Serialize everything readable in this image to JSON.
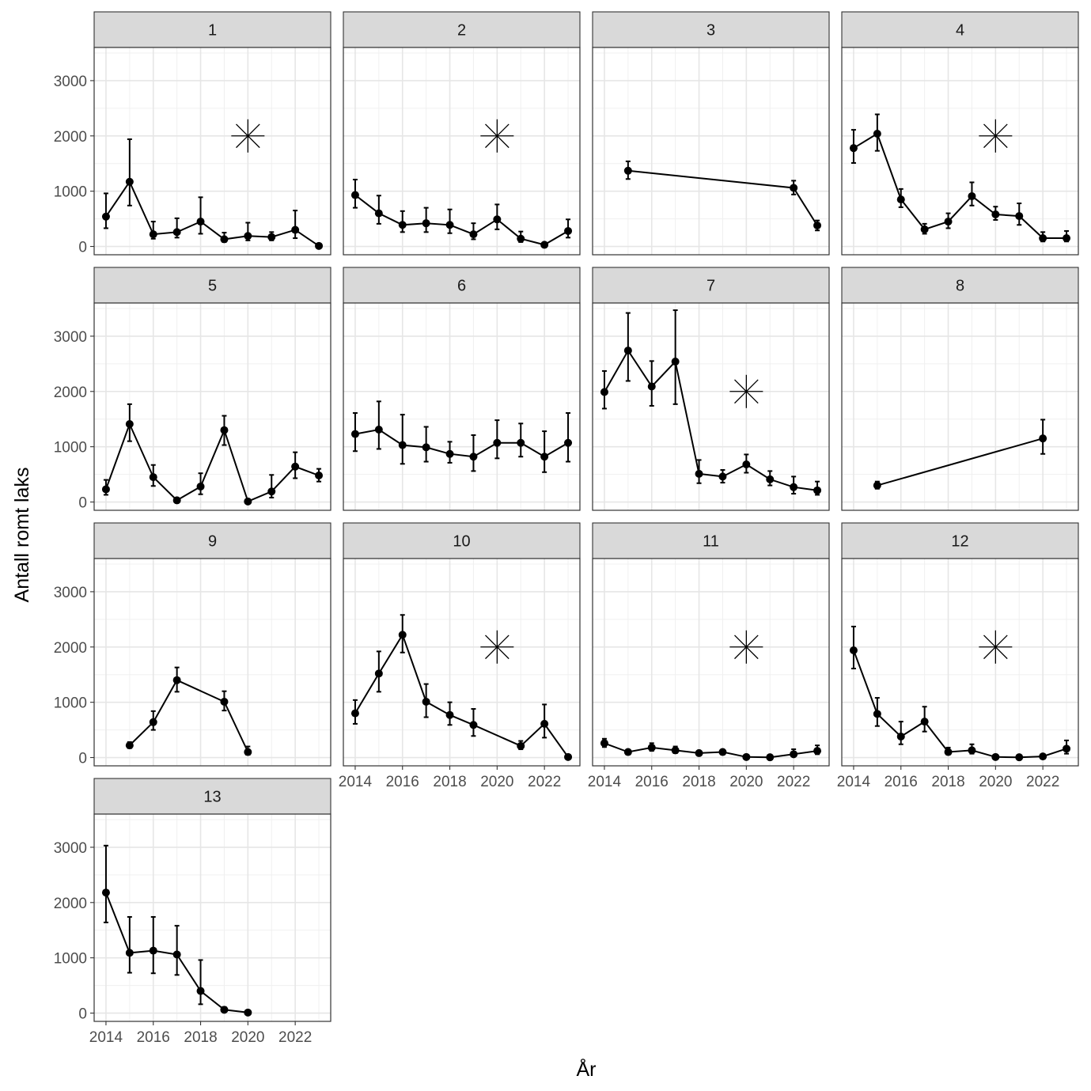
{
  "chart_data": {
    "type": "line",
    "facet_layout": "4 columns, 13 panels",
    "xlabel": "År",
    "ylabel": "Antall romt laks",
    "x_ticks": [
      2014,
      2016,
      2018,
      2020,
      2022
    ],
    "y_ticks": [
      0,
      1000,
      2000,
      3000
    ],
    "xlim": [
      2013.5,
      2023.5
    ],
    "ylim": [
      -150,
      3600
    ],
    "marker_note": "asterisk marker drawn at (2020, 2000) in selected panels",
    "panels": [
      {
        "label": "1",
        "star": true,
        "points": [
          {
            "x": 2014,
            "y": 540,
            "lo": 330,
            "hi": 960
          },
          {
            "x": 2015,
            "y": 1170,
            "lo": 740,
            "hi": 1940
          },
          {
            "x": 2016,
            "y": 220,
            "lo": 140,
            "hi": 450
          },
          {
            "x": 2017,
            "y": 260,
            "lo": 160,
            "hi": 510
          },
          {
            "x": 2018,
            "y": 450,
            "lo": 230,
            "hi": 890
          },
          {
            "x": 2019,
            "y": 130,
            "lo": 80,
            "hi": 250
          },
          {
            "x": 2020,
            "y": 190,
            "lo": 110,
            "hi": 430
          },
          {
            "x": 2021,
            "y": 170,
            "lo": 110,
            "hi": 260
          },
          {
            "x": 2022,
            "y": 300,
            "lo": 150,
            "hi": 650
          },
          {
            "x": 2023,
            "y": 10,
            "lo": 0,
            "hi": 30
          }
        ]
      },
      {
        "label": "2",
        "star": true,
        "points": [
          {
            "x": 2014,
            "y": 930,
            "lo": 700,
            "hi": 1210
          },
          {
            "x": 2015,
            "y": 600,
            "lo": 410,
            "hi": 920
          },
          {
            "x": 2016,
            "y": 390,
            "lo": 260,
            "hi": 640
          },
          {
            "x": 2017,
            "y": 420,
            "lo": 260,
            "hi": 700
          },
          {
            "x": 2018,
            "y": 390,
            "lo": 240,
            "hi": 670
          },
          {
            "x": 2019,
            "y": 220,
            "lo": 130,
            "hi": 420
          },
          {
            "x": 2020,
            "y": 490,
            "lo": 310,
            "hi": 760
          },
          {
            "x": 2021,
            "y": 140,
            "lo": 80,
            "hi": 270
          },
          {
            "x": 2022,
            "y": 30,
            "lo": 10,
            "hi": 60
          },
          {
            "x": 2023,
            "y": 280,
            "lo": 160,
            "hi": 490
          }
        ]
      },
      {
        "label": "3",
        "star": false,
        "points": [
          {
            "x": 2015,
            "y": 1370,
            "lo": 1220,
            "hi": 1540
          },
          {
            "x": 2022,
            "y": 1060,
            "lo": 940,
            "hi": 1190
          },
          {
            "x": 2023,
            "y": 380,
            "lo": 290,
            "hi": 470
          }
        ]
      },
      {
        "label": "4",
        "star": true,
        "points": [
          {
            "x": 2014,
            "y": 1780,
            "lo": 1510,
            "hi": 2110
          },
          {
            "x": 2015,
            "y": 2040,
            "lo": 1730,
            "hi": 2390
          },
          {
            "x": 2016,
            "y": 850,
            "lo": 710,
            "hi": 1040
          },
          {
            "x": 2017,
            "y": 310,
            "lo": 230,
            "hi": 410
          },
          {
            "x": 2018,
            "y": 450,
            "lo": 330,
            "hi": 600
          },
          {
            "x": 2019,
            "y": 910,
            "lo": 740,
            "hi": 1160
          },
          {
            "x": 2020,
            "y": 580,
            "lo": 480,
            "hi": 720
          },
          {
            "x": 2021,
            "y": 550,
            "lo": 390,
            "hi": 780
          },
          {
            "x": 2022,
            "y": 150,
            "lo": 90,
            "hi": 260
          },
          {
            "x": 2023,
            "y": 150,
            "lo": 90,
            "hi": 280
          }
        ]
      },
      {
        "label": "5",
        "star": false,
        "points": [
          {
            "x": 2014,
            "y": 230,
            "lo": 130,
            "hi": 400
          },
          {
            "x": 2015,
            "y": 1410,
            "lo": 1100,
            "hi": 1770
          },
          {
            "x": 2016,
            "y": 450,
            "lo": 290,
            "hi": 670
          },
          {
            "x": 2017,
            "y": 30,
            "lo": 10,
            "hi": 70
          },
          {
            "x": 2018,
            "y": 280,
            "lo": 140,
            "hi": 520
          },
          {
            "x": 2019,
            "y": 1300,
            "lo": 1030,
            "hi": 1560
          },
          {
            "x": 2020,
            "y": 10,
            "lo": 0,
            "hi": 30
          },
          {
            "x": 2021,
            "y": 190,
            "lo": 80,
            "hi": 490
          },
          {
            "x": 2022,
            "y": 640,
            "lo": 430,
            "hi": 900
          },
          {
            "x": 2023,
            "y": 480,
            "lo": 370,
            "hi": 600
          }
        ]
      },
      {
        "label": "6",
        "star": false,
        "points": [
          {
            "x": 2014,
            "y": 1230,
            "lo": 920,
            "hi": 1610
          },
          {
            "x": 2015,
            "y": 1310,
            "lo": 960,
            "hi": 1820
          },
          {
            "x": 2016,
            "y": 1030,
            "lo": 690,
            "hi": 1580
          },
          {
            "x": 2017,
            "y": 990,
            "lo": 730,
            "hi": 1360
          },
          {
            "x": 2018,
            "y": 870,
            "lo": 710,
            "hi": 1090
          },
          {
            "x": 2019,
            "y": 820,
            "lo": 560,
            "hi": 1210
          },
          {
            "x": 2020,
            "y": 1070,
            "lo": 790,
            "hi": 1480
          },
          {
            "x": 2021,
            "y": 1070,
            "lo": 820,
            "hi": 1420
          },
          {
            "x": 2022,
            "y": 820,
            "lo": 540,
            "hi": 1280
          },
          {
            "x": 2023,
            "y": 1070,
            "lo": 730,
            "hi": 1610
          }
        ]
      },
      {
        "label": "7",
        "star": true,
        "points": [
          {
            "x": 2014,
            "y": 1990,
            "lo": 1690,
            "hi": 2370
          },
          {
            "x": 2015,
            "y": 2740,
            "lo": 2190,
            "hi": 3420
          },
          {
            "x": 2016,
            "y": 2090,
            "lo": 1740,
            "hi": 2550
          },
          {
            "x": 2017,
            "y": 2540,
            "lo": 1770,
            "hi": 3470
          },
          {
            "x": 2018,
            "y": 510,
            "lo": 340,
            "hi": 760
          },
          {
            "x": 2019,
            "y": 460,
            "lo": 350,
            "hi": 580
          },
          {
            "x": 2020,
            "y": 680,
            "lo": 530,
            "hi": 860
          },
          {
            "x": 2021,
            "y": 410,
            "lo": 300,
            "hi": 560
          },
          {
            "x": 2022,
            "y": 270,
            "lo": 150,
            "hi": 460
          },
          {
            "x": 2023,
            "y": 210,
            "lo": 130,
            "hi": 370
          }
        ]
      },
      {
        "label": "8",
        "star": false,
        "points": [
          {
            "x": 2015,
            "y": 300,
            "lo": 240,
            "hi": 370
          },
          {
            "x": 2022,
            "y": 1150,
            "lo": 870,
            "hi": 1490
          }
        ]
      },
      {
        "label": "9",
        "star": false,
        "points": [
          {
            "x": 2015,
            "y": 220,
            "lo": 170,
            "hi": 280
          },
          {
            "x": 2016,
            "y": 640,
            "lo": 500,
            "hi": 840
          },
          {
            "x": 2017,
            "y": 1400,
            "lo": 1190,
            "hi": 1630
          },
          {
            "x": 2019,
            "y": 1010,
            "lo": 850,
            "hi": 1200
          },
          {
            "x": 2020,
            "y": 100,
            "lo": 50,
            "hi": 200
          }
        ]
      },
      {
        "label": "10",
        "star": true,
        "points": [
          {
            "x": 2014,
            "y": 800,
            "lo": 610,
            "hi": 1040
          },
          {
            "x": 2015,
            "y": 1520,
            "lo": 1190,
            "hi": 1920
          },
          {
            "x": 2016,
            "y": 2220,
            "lo": 1900,
            "hi": 2580
          },
          {
            "x": 2017,
            "y": 1010,
            "lo": 730,
            "hi": 1330
          },
          {
            "x": 2018,
            "y": 770,
            "lo": 590,
            "hi": 1000
          },
          {
            "x": 2019,
            "y": 590,
            "lo": 390,
            "hi": 880
          },
          {
            "x": 2021,
            "y": 210,
            "lo": 150,
            "hi": 300
          },
          {
            "x": 2022,
            "y": 610,
            "lo": 360,
            "hi": 960
          },
          {
            "x": 2023,
            "y": 10,
            "lo": 0,
            "hi": 30
          }
        ]
      },
      {
        "label": "11",
        "star": true,
        "points": [
          {
            "x": 2014,
            "y": 260,
            "lo": 190,
            "hi": 340
          },
          {
            "x": 2015,
            "y": 100,
            "lo": 70,
            "hi": 140
          },
          {
            "x": 2016,
            "y": 180,
            "lo": 120,
            "hi": 260
          },
          {
            "x": 2017,
            "y": 130,
            "lo": 80,
            "hi": 200
          },
          {
            "x": 2018,
            "y": 80,
            "lo": 60,
            "hi": 110
          },
          {
            "x": 2019,
            "y": 100,
            "lo": 70,
            "hi": 140
          },
          {
            "x": 2020,
            "y": 10,
            "lo": 0,
            "hi": 30
          },
          {
            "x": 2021,
            "y": 5,
            "lo": 0,
            "hi": 20
          },
          {
            "x": 2022,
            "y": 60,
            "lo": 20,
            "hi": 150
          },
          {
            "x": 2023,
            "y": 120,
            "lo": 60,
            "hi": 220
          }
        ]
      },
      {
        "label": "12",
        "star": true,
        "points": [
          {
            "x": 2014,
            "y": 1940,
            "lo": 1610,
            "hi": 2370
          },
          {
            "x": 2015,
            "y": 790,
            "lo": 570,
            "hi": 1080
          },
          {
            "x": 2016,
            "y": 380,
            "lo": 240,
            "hi": 650
          },
          {
            "x": 2017,
            "y": 650,
            "lo": 470,
            "hi": 920
          },
          {
            "x": 2018,
            "y": 100,
            "lo": 60,
            "hi": 180
          },
          {
            "x": 2019,
            "y": 130,
            "lo": 70,
            "hi": 240
          },
          {
            "x": 2020,
            "y": 10,
            "lo": 0,
            "hi": 30
          },
          {
            "x": 2021,
            "y": 5,
            "lo": 0,
            "hi": 20
          },
          {
            "x": 2022,
            "y": 20,
            "lo": 0,
            "hi": 60
          },
          {
            "x": 2023,
            "y": 160,
            "lo": 70,
            "hi": 310
          }
        ]
      },
      {
        "label": "13",
        "star": false,
        "points": [
          {
            "x": 2014,
            "y": 2180,
            "lo": 1640,
            "hi": 3030
          },
          {
            "x": 2015,
            "y": 1090,
            "lo": 730,
            "hi": 1740
          },
          {
            "x": 2016,
            "y": 1130,
            "lo": 720,
            "hi": 1740
          },
          {
            "x": 2017,
            "y": 1060,
            "lo": 690,
            "hi": 1580
          },
          {
            "x": 2018,
            "y": 400,
            "lo": 160,
            "hi": 960
          },
          {
            "x": 2019,
            "y": 60,
            "lo": 30,
            "hi": 110
          },
          {
            "x": 2020,
            "y": 10,
            "lo": 0,
            "hi": 30
          }
        ]
      }
    ]
  }
}
